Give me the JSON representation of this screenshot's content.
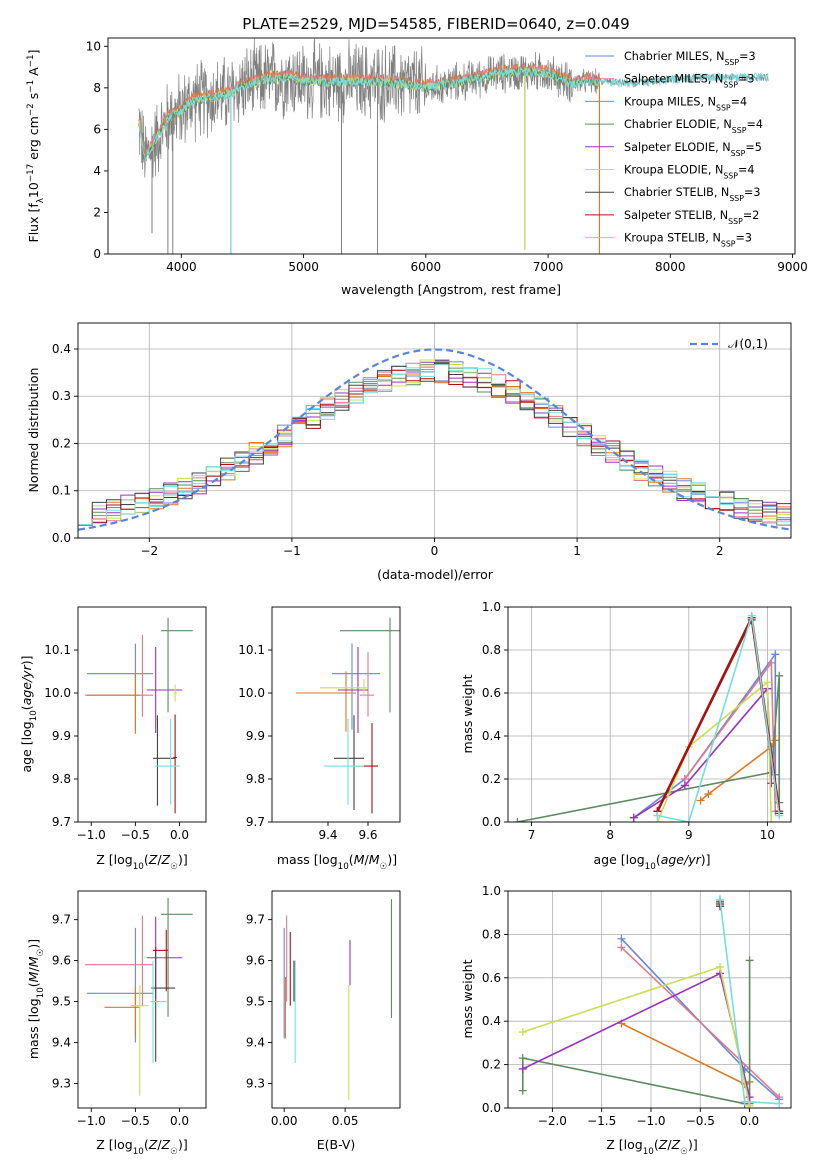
{
  "figure_title": "PLATE=2529, MJD=54585, FIBERID=0640, z=0.049",
  "colors": {
    "Chabrier MILES": "#6688dd",
    "Salpeter MILES": "#e07a8e",
    "Kroupa MILES": "#dd7a22",
    "Chabrier ELODIE": "#5f8a62",
    "Salpeter ELODIE": "#9933bb",
    "Kroupa ELODIE": "#ccdd55",
    "Chabrier STELIB": "#444444",
    "Salpeter STELIB": "#aa1111",
    "Kroupa STELIB": "#77dddd",
    "data": "#808080",
    "normal": "#5b86d6"
  },
  "chart_data": [
    {
      "type": "line",
      "id": "spectrum",
      "xlabel": "wavelength [Angstrom, rest frame]",
      "ylabel": "Flux [f_λ10^−17 erg cm^−2 s^−1 A^−1]",
      "xlim": [
        3400,
        9020
      ],
      "ylim": [
        0,
        10.4
      ],
      "xticks": [
        4000,
        5000,
        6000,
        7000,
        8000,
        9000
      ],
      "yticks": [
        0,
        2,
        4,
        6,
        8,
        10
      ],
      "legend": [
        "Chabrier MILES, N_SSP=3",
        "Salpeter MILES, N_SSP=3",
        "Kroupa MILES, N_SSP=4",
        "Chabrier ELODIE, N_SSP=4",
        "Salpeter ELODIE, N_SSP=5",
        "Kroupa ELODIE, N_SSP=4",
        "Chabrier STELIB, N_SSP=3",
        "Salpeter STELIB, N_SSP=2",
        "Kroupa STELIB, N_SSP=3"
      ],
      "legend_keys": [
        "Chabrier MILES",
        "Salpeter MILES",
        "Kroupa MILES",
        "Chabrier ELODIE",
        "Salpeter ELODIE",
        "Kroupa ELODIE",
        "Chabrier STELIB",
        "Salpeter STELIB",
        "Kroupa STELIB"
      ],
      "legend_placement": "upper-right",
      "continuum": [
        [
          3650,
          6.5
        ],
        [
          3700,
          4.6
        ],
        [
          3800,
          5.6
        ],
        [
          3900,
          6.6
        ],
        [
          3980,
          6.8
        ],
        [
          4100,
          7.4
        ],
        [
          4300,
          7.6
        ],
        [
          4400,
          7.7
        ],
        [
          4500,
          8.1
        ],
        [
          4700,
          8.4
        ],
        [
          4900,
          8.5
        ],
        [
          5000,
          8.3
        ],
        [
          5200,
          8.3
        ],
        [
          5500,
          8.3
        ],
        [
          5800,
          8.2
        ],
        [
          6000,
          8.0
        ],
        [
          6300,
          8.3
        ],
        [
          6600,
          8.7
        ],
        [
          6800,
          8.8
        ],
        [
          7000,
          8.7
        ],
        [
          7200,
          8.2
        ],
        [
          7300,
          8.3
        ],
        [
          7500,
          8.3
        ],
        [
          7700,
          8.2
        ],
        [
          8000,
          8.4
        ],
        [
          8300,
          8.5
        ],
        [
          8600,
          8.5
        ],
        [
          8800,
          8.5
        ]
      ],
      "dips": [
        [
          3760,
          1.0
        ],
        [
          3890,
          0.0
        ],
        [
          3930,
          0.0
        ],
        [
          4405,
          0.0
        ],
        [
          5310,
          0.0
        ],
        [
          5605,
          0.0
        ],
        [
          6810,
          0.2
        ],
        [
          7420,
          0.0
        ]
      ]
    },
    {
      "type": "histogram",
      "id": "residuals",
      "xlabel": "(data-model)/error",
      "ylabel": "Normed distribution",
      "xlim": [
        -2.5,
        2.5
      ],
      "ylim": [
        0,
        0.455
      ],
      "xticks": [
        -2,
        -1,
        0,
        1,
        2
      ],
      "yticks": [
        0.0,
        0.1,
        0.2,
        0.3,
        0.4
      ],
      "legend": [
        "𝒩(0,1)"
      ],
      "legend_placement": "upper-right",
      "bins": [
        -2.5,
        2.5,
        50
      ],
      "normal": {
        "mean": 0,
        "sigma": 1
      }
    },
    {
      "type": "errorbar",
      "id": "age-vs-metallicity",
      "xlabel": "Z [log10(Z/Z☉)]",
      "ylabel": "age [log10(age/yr)]",
      "xlim": [
        -1.15,
        0.3
      ],
      "ylim": [
        9.7,
        10.2
      ],
      "xticks": [
        -1.0,
        -0.5,
        0.0
      ],
      "yticks": [
        9.7,
        9.8,
        9.9,
        10.0,
        10.1
      ],
      "points": [
        {
          "model": "Chabrier MILES",
          "x": -0.5,
          "xerr": [
            0.55,
            0.2
          ],
          "y": 10.045,
          "yerr": [
            0.13,
            0.07
          ]
        },
        {
          "model": "Salpeter MILES",
          "x": -0.42,
          "xerr": [
            0.65,
            0.12
          ],
          "y": 9.995,
          "yerr": [
            0.05,
            0.14
          ]
        },
        {
          "model": "Kroupa MILES",
          "x": -0.5,
          "xerr": [
            0.55,
            0.05
          ],
          "y": 9.995,
          "yerr": [
            0.09,
            0.05
          ]
        },
        {
          "model": "Chabrier ELODIE",
          "x": -0.13,
          "xerr": [
            0.08,
            0.28
          ],
          "y": 10.145,
          "yerr": [
            0.19,
            0.03
          ]
        },
        {
          "model": "Salpeter ELODIE",
          "x": -0.27,
          "xerr": [
            0.1,
            0.3
          ],
          "y": 10.007,
          "yerr": [
            0.1,
            0.1
          ]
        },
        {
          "model": "Kroupa ELODIE",
          "x": -0.05,
          "xerr": [
            0.02,
            0.02
          ],
          "y": 10.0,
          "yerr": [
            0.02,
            0.02
          ]
        },
        {
          "model": "Chabrier STELIB",
          "x": -0.25,
          "xerr": [
            0.05,
            0.2
          ],
          "y": 9.848,
          "yerr": [
            0.11,
            0.1
          ]
        },
        {
          "model": "Salpeter STELIB",
          "x": -0.05,
          "xerr": [
            0.02,
            0.02
          ],
          "y": 9.85,
          "yerr": [
            0.13,
            0.1
          ]
        },
        {
          "model": "Kroupa STELIB",
          "x": -0.1,
          "xerr": [
            0.18,
            0.1
          ],
          "y": 9.83,
          "yerr": [
            0.09,
            0.11
          ]
        }
      ]
    },
    {
      "type": "errorbar",
      "id": "age-vs-mass",
      "xlabel": "mass [log10(M/M☉)]",
      "ylabel": "",
      "xlim": [
        9.12,
        9.76
      ],
      "ylim": [
        9.7,
        10.2
      ],
      "xticks": [
        9.4,
        9.6
      ],
      "yticks": [
        9.7,
        9.8,
        9.9,
        10.0,
        10.1
      ],
      "points": [
        {
          "model": "Chabrier MILES",
          "x": 9.52,
          "xerr": [
            0.1,
            0.14
          ],
          "y": 10.045,
          "yerr": [
            0.13,
            0.07
          ]
        },
        {
          "model": "Salpeter MILES",
          "x": 9.6,
          "xerr": [
            0.04,
            0.03
          ],
          "y": 9.995,
          "yerr": [
            0.05,
            0.1
          ]
        },
        {
          "model": "Kroupa MILES",
          "x": 9.49,
          "xerr": [
            0.25,
            0.05
          ],
          "y": 10.0,
          "yerr": [
            0.09,
            0.05
          ]
        },
        {
          "model": "Chabrier ELODIE",
          "x": 9.71,
          "xerr": [
            0.25,
            0.15
          ],
          "y": 10.145,
          "yerr": [
            0.19,
            0.03
          ]
        },
        {
          "model": "Salpeter ELODIE",
          "x": 9.55,
          "xerr": [
            0.1,
            0.05
          ],
          "y": 10.007,
          "yerr": [
            0.1,
            0.1
          ]
        },
        {
          "model": "Kroupa ELODIE",
          "x": 9.58,
          "xerr": [
            0.22,
            0.02
          ],
          "y": 10.012,
          "yerr": [
            0.02,
            0.02
          ]
        },
        {
          "model": "Chabrier STELIB",
          "x": 9.53,
          "xerr": [
            0.1,
            0.05
          ],
          "y": 9.848,
          "yerr": [
            0.12,
            0.1
          ]
        },
        {
          "model": "Salpeter STELIB",
          "x": 9.62,
          "xerr": [
            0.08,
            0.03
          ],
          "y": 9.83,
          "yerr": [
            0.11,
            0.1
          ]
        },
        {
          "model": "Kroupa STELIB",
          "x": 9.5,
          "xerr": [
            0.12,
            0.08
          ],
          "y": 9.83,
          "yerr": [
            0.09,
            0.11
          ]
        }
      ]
    },
    {
      "type": "line",
      "id": "mass-weight-vs-age",
      "xlabel": "age [log10(age/yr)]",
      "ylabel": "mass weight",
      "xlim": [
        6.7,
        10.3
      ],
      "ylim": [
        0,
        1.0
      ],
      "xticks": [
        7,
        8,
        9,
        10
      ],
      "yticks": [
        0.0,
        0.2,
        0.4,
        0.6,
        0.8,
        1.0
      ],
      "series": [
        {
          "model": "Chabrier MILES",
          "x": [
            8.3,
            8.95,
            10.1,
            10.1
          ],
          "y": [
            0.02,
            0.2,
            0.78,
            0.22
          ]
        },
        {
          "model": "Salpeter MILES",
          "x": [
            8.95,
            10.05,
            10.1
          ],
          "y": [
            0.2,
            0.74,
            0.05
          ]
        },
        {
          "model": "Kroupa MILES",
          "x": [
            9.15,
            9.25,
            10.05,
            10.1
          ],
          "y": [
            0.1,
            0.13,
            0.35,
            0.38
          ]
        },
        {
          "model": "Chabrier ELODIE",
          "x": [
            6.82,
            10.05,
            10.15,
            10.15
          ],
          "y": [
            0.0,
            0.23,
            0.68,
            0.09
          ]
        },
        {
          "model": "Salpeter ELODIE",
          "x": [
            8.3,
            8.95,
            10.0,
            10.05
          ],
          "y": [
            0.02,
            0.17,
            0.62,
            0.18
          ]
        },
        {
          "model": "Kroupa ELODIE",
          "x": [
            8.6,
            9.0,
            10.0,
            10.05
          ],
          "y": [
            0.0,
            0.35,
            0.65,
            0.0
          ]
        },
        {
          "model": "Chabrier STELIB",
          "x": [
            8.6,
            9.8,
            10.15
          ],
          "y": [
            0.05,
            0.94,
            0.04
          ]
        },
        {
          "model": "Salpeter STELIB",
          "x": [
            8.6,
            9.8,
            10.15
          ],
          "y": [
            0.05,
            0.95,
            0.05
          ]
        },
        {
          "model": "Kroupa STELIB",
          "x": [
            8.6,
            9.0,
            9.8,
            10.15
          ],
          "y": [
            0.03,
            0.0,
            0.96,
            0.03
          ]
        }
      ]
    },
    {
      "type": "errorbar",
      "id": "mass-vs-metallicity",
      "xlabel": "Z [log10(Z/Z☉)]",
      "ylabel": "mass [log10(M/M☉)]",
      "xlim": [
        -1.15,
        0.3
      ],
      "ylim": [
        9.24,
        9.77
      ],
      "xticks": [
        -1.0,
        -0.5,
        0.0
      ],
      "yticks": [
        9.3,
        9.4,
        9.5,
        9.6,
        9.7
      ],
      "points": [
        {
          "model": "Chabrier MILES",
          "x": -0.5,
          "xerr": [
            0.55,
            0.2
          ],
          "y": 9.52,
          "yerr": [
            0.12,
            0.16
          ]
        },
        {
          "model": "Salpeter MILES",
          "x": -0.42,
          "xerr": [
            0.65,
            0.12
          ],
          "y": 9.59,
          "yerr": [
            0.1,
            0.12
          ]
        },
        {
          "model": "Kroupa MILES",
          "x": -0.5,
          "xerr": [
            0.35,
            0.05
          ],
          "y": 9.486,
          "yerr": [
            0.07,
            0.05
          ]
        },
        {
          "model": "Chabrier ELODIE",
          "x": -0.13,
          "xerr": [
            0.08,
            0.28
          ],
          "y": 9.713,
          "yerr": [
            0.25,
            0.04
          ]
        },
        {
          "model": "Salpeter ELODIE",
          "x": -0.27,
          "xerr": [
            0.1,
            0.3
          ],
          "y": 9.607,
          "yerr": [
            0.1,
            0.1
          ]
        },
        {
          "model": "Kroupa ELODIE",
          "x": -0.45,
          "xerr": [
            0.1,
            0.1
          ],
          "y": 9.49,
          "yerr": [
            0.22,
            0.05
          ]
        },
        {
          "model": "Chabrier STELIB",
          "x": -0.27,
          "xerr": [
            0.05,
            0.22
          ],
          "y": 9.533,
          "yerr": [
            0.18,
            0.1
          ]
        },
        {
          "model": "Salpeter STELIB",
          "x": -0.15,
          "xerr": [
            0.15,
            0.02
          ],
          "y": 9.625,
          "yerr": [
            0.1,
            0.05
          ]
        },
        {
          "model": "Kroupa STELIB",
          "x": -0.3,
          "xerr": [
            0.03,
            0.15
          ],
          "y": 9.5,
          "yerr": [
            0.15,
            0.1
          ]
        }
      ]
    },
    {
      "type": "errorbar",
      "id": "mass-vs-ebv",
      "xlabel": "E(B-V)",
      "ylabel": "",
      "xlim": [
        -0.01,
        0.095
      ],
      "ylim": [
        9.24,
        9.77
      ],
      "xticks": [
        0.0,
        0.05
      ],
      "yticks": [
        9.3,
        9.4,
        9.5,
        9.6,
        9.7
      ],
      "points": [
        {
          "model": "Chabrier MILES",
          "x": 0.0,
          "xerr": [
            0.0,
            0.0
          ],
          "y": 9.53,
          "yerr": [
            0.12,
            0.15
          ]
        },
        {
          "model": "Salpeter MILES",
          "x": 0.002,
          "xerr": [
            0.0,
            0.0
          ],
          "y": 9.6,
          "yerr": [
            0.1,
            0.11
          ]
        },
        {
          "model": "Kroupa MILES",
          "x": 0.001,
          "xerr": [
            0.0,
            0.0
          ],
          "y": 9.5,
          "yerr": [
            0.09,
            0.06
          ]
        },
        {
          "model": "Chabrier ELODIE",
          "x": 0.088,
          "xerr": [
            0.0,
            0.0
          ],
          "y": 9.6,
          "yerr": [
            0.14,
            0.15
          ]
        },
        {
          "model": "Salpeter ELODIE",
          "x": 0.054,
          "xerr": [
            0.0,
            0.0
          ],
          "y": 9.6,
          "yerr": [
            0.06,
            0.05
          ]
        },
        {
          "model": "Kroupa ELODIE",
          "x": 0.053,
          "xerr": [
            0.0,
            0.0
          ],
          "y": 9.4,
          "yerr": [
            0.14,
            0.14
          ]
        },
        {
          "model": "Chabrier STELIB",
          "x": 0.008,
          "xerr": [
            0.0,
            0.0
          ],
          "y": 9.55,
          "yerr": [
            0.05,
            0.05
          ]
        },
        {
          "model": "Salpeter STELIB",
          "x": 0.005,
          "xerr": [
            0.0,
            0.0
          ],
          "y": 9.58,
          "yerr": [
            0.09,
            0.09
          ]
        },
        {
          "model": "Kroupa STELIB",
          "x": 0.009,
          "xerr": [
            0.0,
            0.0
          ],
          "y": 9.45,
          "yerr": [
            0.1,
            0.15
          ]
        }
      ]
    },
    {
      "type": "line",
      "id": "mass-weight-vs-metallicity",
      "xlabel": "Z [log10(Z/Z☉)]",
      "ylabel": "mass weight",
      "xlim": [
        -2.45,
        0.42
      ],
      "ylim": [
        0,
        1.0
      ],
      "xticks": [
        -2.0,
        -1.5,
        -1.0,
        -0.5,
        0.0
      ],
      "yticks": [
        0.0,
        0.2,
        0.4,
        0.6,
        0.8,
        1.0
      ],
      "series": [
        {
          "model": "Chabrier MILES",
          "x": [
            -1.3,
            -0.05,
            0.3
          ],
          "y": [
            0.78,
            0.18,
            0.04
          ]
        },
        {
          "model": "Salpeter MILES",
          "x": [
            -1.3,
            0.3
          ],
          "y": [
            0.74,
            0.05
          ]
        },
        {
          "model": "Kroupa MILES",
          "x": [
            -1.3,
            -0.05,
            0.0
          ],
          "y": [
            0.39,
            0.11,
            0.12
          ]
        },
        {
          "model": "Chabrier ELODIE",
          "x": [
            -2.3,
            -2.3,
            -0.05,
            0.0,
            0.0
          ],
          "y": [
            0.08,
            0.23,
            0.02,
            0.02,
            0.68
          ]
        },
        {
          "model": "Salpeter ELODIE",
          "x": [
            -2.3,
            -0.3,
            0.0
          ],
          "y": [
            0.18,
            0.62,
            0.05
          ]
        },
        {
          "model": "Kroupa ELODIE",
          "x": [
            -2.3,
            -0.3,
            0.0
          ],
          "y": [
            0.35,
            0.65,
            0.01
          ]
        },
        {
          "model": "Chabrier STELIB",
          "x": [
            -0.3,
            -0.3
          ],
          "y": [
            0.95,
            0.93
          ]
        },
        {
          "model": "Salpeter STELIB",
          "x": [
            -0.3,
            -0.3
          ],
          "y": [
            0.96,
            0.94
          ]
        },
        {
          "model": "Kroupa STELIB",
          "x": [
            -0.3,
            -0.05,
            0.3
          ],
          "y": [
            0.96,
            0.03,
            0.02
          ]
        }
      ]
    }
  ]
}
